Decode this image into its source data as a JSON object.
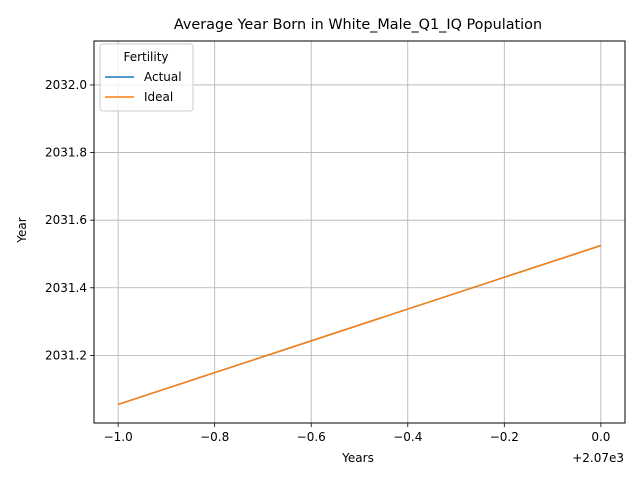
{
  "chart_data": {
    "type": "line",
    "title": "Average Year Born in White_Male_Q1_IQ Population",
    "xlabel": "Years",
    "ylabel": "Year",
    "x_offset_label": "+2.07e3",
    "x": [
      2069,
      2070
    ],
    "xlim": [
      2068.95,
      2070.05
    ],
    "ylim": [
      2031.0,
      2032.13
    ],
    "x_ticks": [
      2069.0,
      2069.2,
      2069.4,
      2069.6,
      2069.8,
      2070.0
    ],
    "x_tick_labels": [
      "−1.0",
      "−0.8",
      "−0.6",
      "−0.4",
      "−0.2",
      "0.0"
    ],
    "y_ticks": [
      2031.2,
      2031.4,
      2031.6,
      2031.8,
      2032.0
    ],
    "y_tick_labels": [
      "2031.2",
      "2031.4",
      "2031.6",
      "2031.8",
      "2032.0"
    ],
    "grid": true,
    "legend": {
      "title": "Fertility",
      "placement": "upper-left"
    },
    "series": [
      {
        "name": "Actual",
        "color": "#1f77b4",
        "values": [
          2031.055,
          2031.525
        ]
      },
      {
        "name": "Ideal",
        "color": "#ff7f0e",
        "values": [
          2031.055,
          2031.525
        ]
      }
    ]
  }
}
